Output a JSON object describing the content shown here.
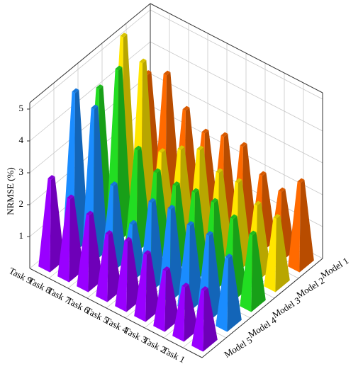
{
  "chart_data": {
    "type": "bar3d",
    "y_label": "NRMSE (%)",
    "categories": [
      "Task 1",
      "Task 2",
      "Task 3",
      "Task 4",
      "Task 5",
      "Task 6",
      "Task 7",
      "Task 8",
      "Task 9"
    ],
    "series": [
      {
        "name": "Model 1",
        "color": "#ff6a00",
        "values": [
          2.6,
          2.0,
          2.2,
          2.8,
          2.8,
          2.6,
          3.0,
          3.8,
          3.5
        ]
      },
      {
        "name": "Model 2",
        "color": "#ffe600",
        "values": [
          2.1,
          2.2,
          2.6,
          2.6,
          3.0,
          2.7,
          2.3,
          4.8,
          5.3
        ]
      },
      {
        "name": "Model 3",
        "color": "#22dd22",
        "values": [
          2.2,
          2.4,
          2.6,
          2.6,
          2.5,
          2.6,
          3.0,
          5.2,
          4.3
        ]
      },
      {
        "name": "Model 4",
        "color": "#1a8cff",
        "values": [
          2.1,
          2.5,
          2.5,
          2.7,
          2.6,
          1.6,
          2.5,
          4.6,
          4.8
        ]
      },
      {
        "name": "Model 5",
        "color": "#9900ff",
        "values": [
          1.7,
          1.5,
          1.7,
          1.9,
          2.0,
          1.9,
          2.2,
          2.4,
          2.7
        ]
      }
    ],
    "ylim": [
      0,
      5.2
    ],
    "yticks": [
      1,
      2,
      3,
      4,
      5
    ],
    "grid": true
  }
}
